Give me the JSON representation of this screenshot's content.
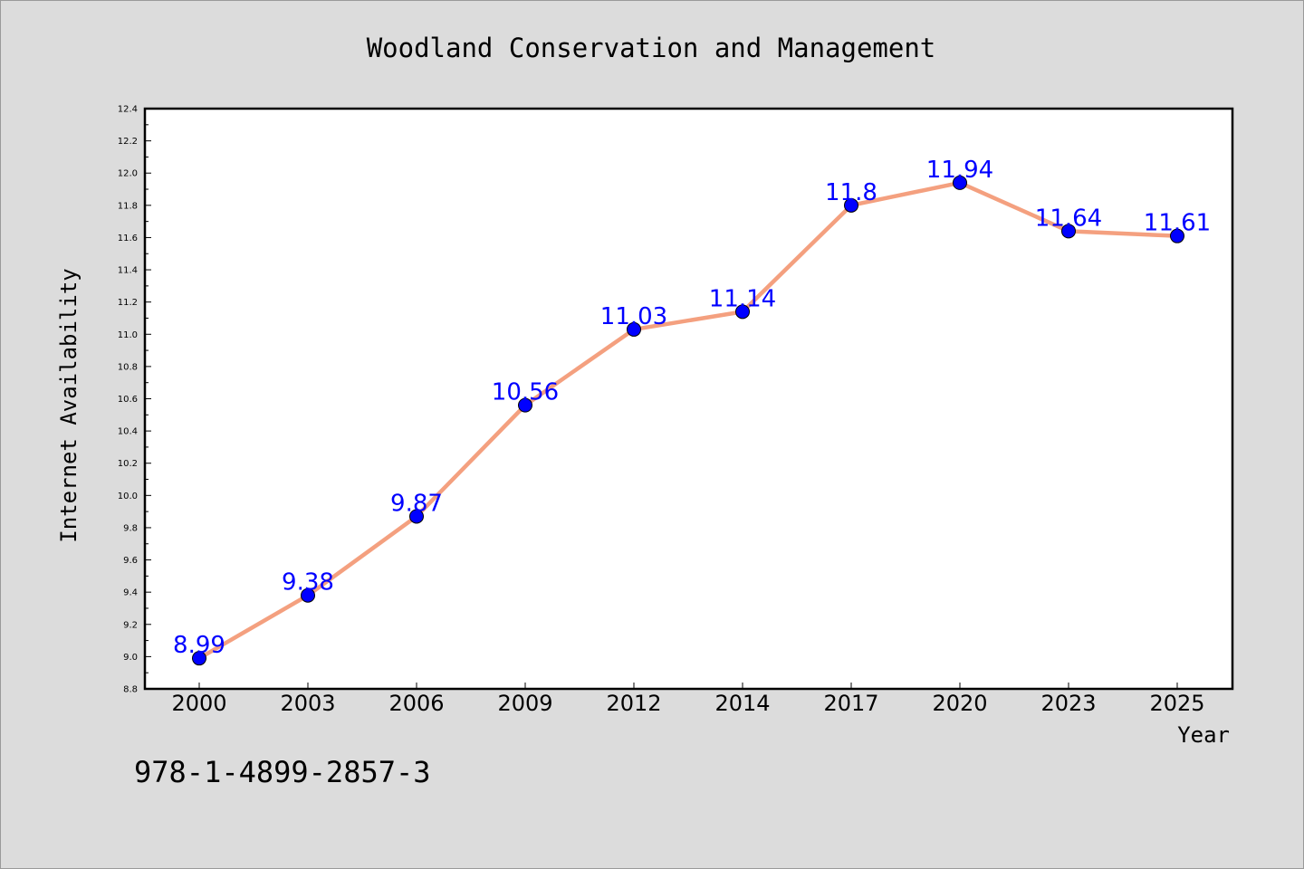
{
  "chart_data": {
    "type": "line",
    "title": "Woodland Conservation and Management",
    "xlabel": "Year",
    "ylabel": "Internet Availability",
    "categories": [
      "2000",
      "2003",
      "2006",
      "2009",
      "2012",
      "2014",
      "2017",
      "2020",
      "2023",
      "2025"
    ],
    "series": [
      {
        "values": [
          8.99,
          9.38,
          9.87,
          10.56,
          11.03,
          11.14,
          11.8,
          11.94,
          11.64,
          11.61
        ]
      }
    ],
    "ylim": [
      8.8,
      12.4
    ],
    "yticks": [
      "8.8",
      "9.0",
      "9.2",
      "9.4",
      "9.6",
      "9.8",
      "10.0",
      "10.2",
      "10.4",
      "10.6",
      "10.8",
      "11.0",
      "11.2",
      "11.4",
      "11.6",
      "11.8",
      "12.0",
      "12.2",
      "12.4"
    ],
    "grid": false,
    "legend": "none",
    "colors": {
      "line": "#f4a07f",
      "marker": "#0000ff",
      "data_label": "#0000ff",
      "plot_background": "#ffffff",
      "page_background": "#dcdcdc"
    }
  },
  "footer": {
    "isbn": "978-1-4899-2857-3"
  }
}
